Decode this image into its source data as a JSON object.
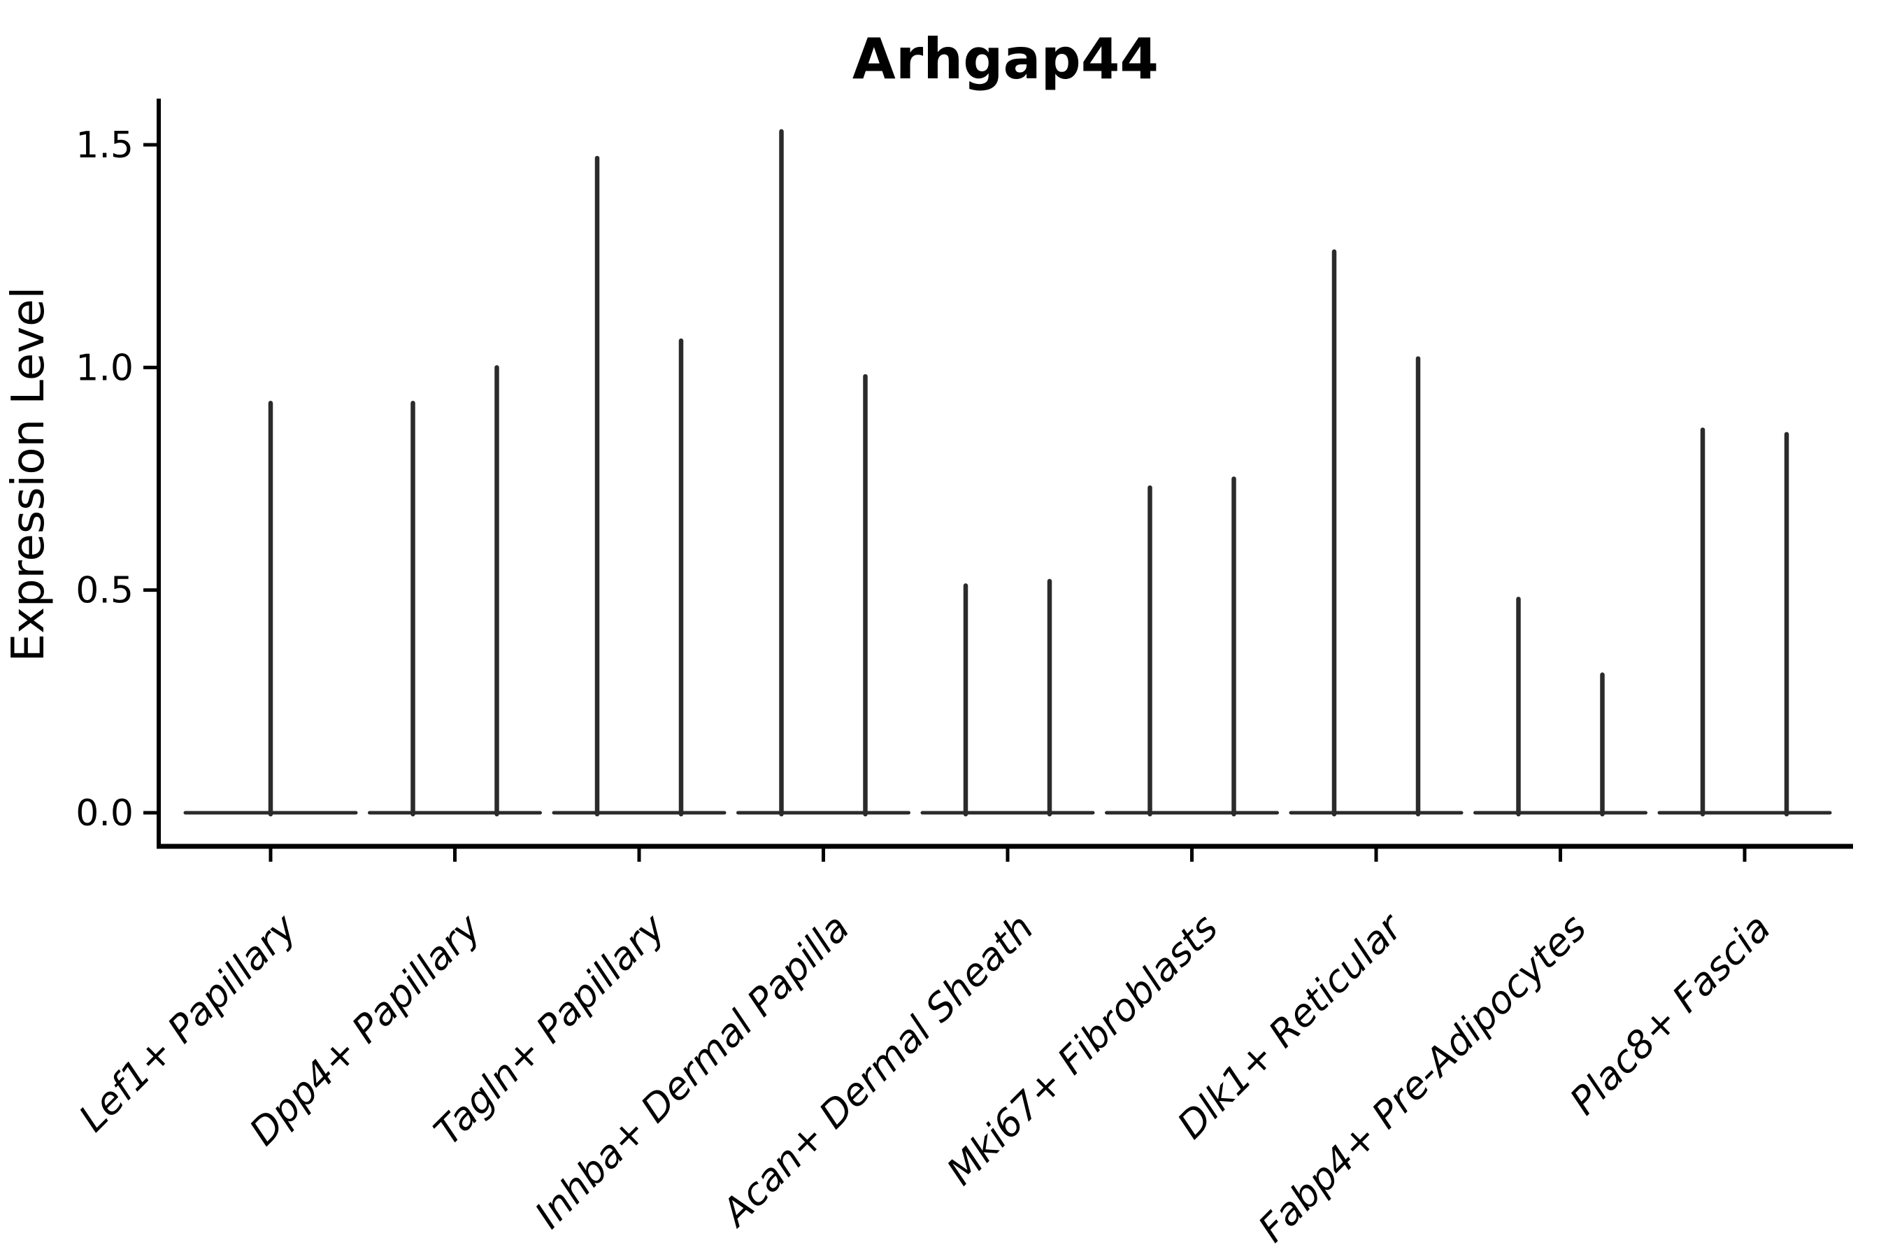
{
  "chart_data": {
    "type": "violin",
    "title": "Arhgap44",
    "ylabel": "Expression Level",
    "xlabel": "",
    "yticks": [
      0.0,
      0.5,
      1.0,
      1.5
    ],
    "ylim": [
      -0.08,
      1.6
    ],
    "grid": false,
    "legend": "none",
    "categories": [
      "Lef1+ Papillary",
      "Dpp4+ Papillary",
      "Tagln+ Papillary",
      "Inhba+ Dermal Papilla",
      "Acan+ Dermal Sheath",
      "Mki67+ Fibroblasts",
      "Dlk1+ Reticular",
      "Fabp4+ Pre-Adipocytes",
      "Plac8+ Fascia"
    ],
    "violins": [
      {
        "category": "Lef1+ Papillary",
        "spikes": [
          {
            "position": "center",
            "max": 0.92
          }
        ]
      },
      {
        "category": "Dpp4+ Papillary",
        "spikes": [
          {
            "position": "left",
            "max": 0.92
          },
          {
            "position": "right",
            "max": 1.0
          }
        ]
      },
      {
        "category": "Tagln+ Papillary",
        "spikes": [
          {
            "position": "left",
            "max": 1.47
          },
          {
            "position": "right",
            "max": 1.06
          }
        ]
      },
      {
        "category": "Inhba+ Dermal Papilla",
        "spikes": [
          {
            "position": "left",
            "max": 1.53
          },
          {
            "position": "right",
            "max": 0.98
          }
        ]
      },
      {
        "category": "Acan+ Dermal Sheath",
        "spikes": [
          {
            "position": "left",
            "max": 0.51
          },
          {
            "position": "right",
            "max": 0.52
          }
        ]
      },
      {
        "category": "Mki67+ Fibroblasts",
        "spikes": [
          {
            "position": "left",
            "max": 0.73
          },
          {
            "position": "right",
            "max": 0.75
          }
        ]
      },
      {
        "category": "Dlk1+ Reticular",
        "spikes": [
          {
            "position": "left",
            "max": 1.26
          },
          {
            "position": "right",
            "max": 1.02
          }
        ]
      },
      {
        "category": "Fabp4+ Pre-Adipocytes",
        "spikes": [
          {
            "position": "left",
            "max": 0.48
          },
          {
            "position": "right",
            "max": 0.31
          }
        ]
      },
      {
        "category": "Plac8+ Fascia",
        "spikes": [
          {
            "position": "left",
            "max": 0.86
          },
          {
            "position": "right",
            "max": 0.85
          }
        ]
      }
    ],
    "colors": {
      "violin": "#2b2b2b",
      "axis": "#000000",
      "text": "#000000",
      "background": "#ffffff"
    }
  }
}
